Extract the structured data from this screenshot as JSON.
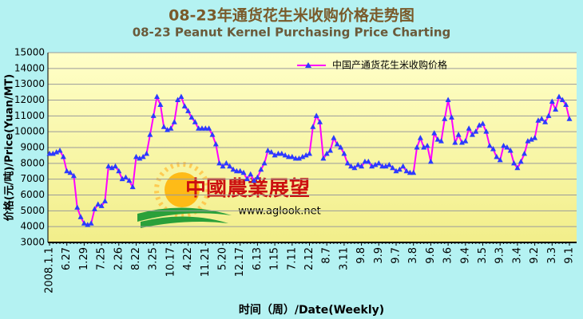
{
  "chart_data": {
    "type": "line",
    "title": "08-23年通货花生米收购价格走势图",
    "subtitle": "08-23 Peanut Kernel Purchasing Price Charting",
    "y_label": "价格(元/吨)/Price(Yuan/MT)",
    "x_label": "时间（周）/Date(Weekly)",
    "annotations": [
      "中國農業展望",
      "www.aglook.net"
    ],
    "legend": "top-right",
    "grid": true,
    "ylim": [
      3000,
      15000
    ],
    "yticks": [
      3000,
      4000,
      5000,
      6000,
      7000,
      8000,
      9000,
      10000,
      11000,
      12000,
      13000,
      14000,
      15000
    ],
    "categories": [
      "2008.1.1",
      null,
      null,
      null,
      null,
      "6.27",
      null,
      null,
      null,
      null,
      "1.29",
      null,
      null,
      null,
      null,
      "7.25",
      null,
      null,
      null,
      null,
      "2.26",
      null,
      null,
      null,
      null,
      "8.22",
      null,
      null,
      null,
      null,
      "3.25",
      null,
      null,
      null,
      null,
      "10.17",
      null,
      null,
      null,
      null,
      "4.22",
      null,
      null,
      null,
      null,
      "11.21",
      null,
      null,
      null,
      null,
      "5.20",
      null,
      null,
      null,
      null,
      "12.17",
      null,
      null,
      null,
      null,
      "6.13",
      null,
      null,
      null,
      null,
      "1.15",
      null,
      null,
      null,
      null,
      "7.11",
      null,
      null,
      null,
      null,
      "2.12",
      null,
      null,
      null,
      null,
      "8.7",
      null,
      null,
      null,
      null,
      "3.11",
      null,
      null,
      null,
      null,
      "9.8",
      null,
      null,
      null,
      null,
      "3.9",
      null,
      null,
      null,
      null,
      "9.7",
      null,
      null,
      null,
      null,
      "3.8",
      null,
      null,
      null,
      null,
      "9.6",
      null,
      null,
      null,
      null,
      "3.6",
      null,
      null,
      null,
      null,
      "9.4",
      null,
      null,
      null,
      null,
      "3.5",
      null,
      null,
      null,
      null,
      "9.3",
      null,
      null,
      null,
      null,
      "3.4",
      null,
      null,
      null,
      null,
      "9.2",
      null,
      null,
      null,
      null,
      "3.3",
      null,
      null,
      null,
      null,
      "9.1"
    ],
    "series": [
      {
        "name": "中国产通货花生米收购价格",
        "color": "#ff00ff",
        "marker_color": "#2a3cff",
        "values": [
          8600,
          8600,
          8700,
          8800,
          8400,
          7500,
          7400,
          7200,
          5200,
          4600,
          4200,
          4100,
          4200,
          5100,
          5400,
          5300,
          5600,
          7800,
          7700,
          7800,
          7500,
          7000,
          7100,
          6900,
          6500,
          8400,
          8300,
          8400,
          8600,
          9800,
          11000,
          12200,
          11700,
          10300,
          10100,
          10200,
          10600,
          12000,
          12200,
          11600,
          11300,
          10900,
          10600,
          10200,
          10200,
          10200,
          10200,
          9800,
          9200,
          8000,
          7800,
          8000,
          7800,
          7600,
          7500,
          7500,
          7400,
          7000,
          7300,
          6900,
          7100,
          7600,
          8000,
          8800,
          8700,
          8500,
          8600,
          8600,
          8500,
          8400,
          8400,
          8300,
          8300,
          8400,
          8500,
          8600,
          10300,
          11000,
          10600,
          8300,
          8600,
          8800,
          9600,
          9200,
          9000,
          8600,
          8000,
          7800,
          7700,
          7900,
          7800,
          8100,
          8100,
          7800,
          7900,
          8000,
          7800,
          7800,
          7900,
          7700,
          7500,
          7600,
          7800,
          7500,
          7400,
          7400,
          9000,
          9600,
          9000,
          9100,
          8100,
          9900,
          9500,
          9400,
          10800,
          12000,
          10900,
          9300,
          9800,
          9300,
          9400,
          10200,
          9800,
          10000,
          10400,
          10500,
          10000,
          9100,
          8900,
          8400,
          8200,
          9100,
          9000,
          8800,
          8000,
          7700,
          8100,
          8600,
          9400,
          9500,
          9600,
          10700,
          10800,
          10600,
          11000,
          11900,
          11400,
          12200,
          12000,
          11700,
          10800
        ]
      }
    ]
  }
}
